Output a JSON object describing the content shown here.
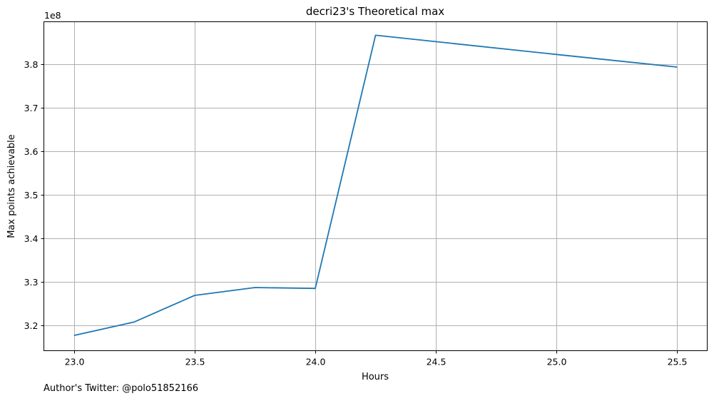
{
  "chart_data": {
    "type": "line",
    "title": "decri23's Theoretical max",
    "xlabel": "Hours",
    "ylabel": "Max points achievable",
    "y_scale_label": "1e8",
    "x": [
      23.0,
      23.25,
      23.5,
      23.75,
      24.0,
      24.25,
      25.0,
      25.5
    ],
    "series": [
      {
        "values": [
          3.177,
          3.208,
          3.269,
          3.287,
          3.285,
          3.866,
          3.822,
          3.793
        ],
        "color": "#1f77b4"
      }
    ],
    "xlim": [
      22.875,
      25.625
    ],
    "ylim": [
      3.142,
      3.897
    ],
    "xticks": [
      23.0,
      23.5,
      24.0,
      24.5,
      25.0,
      25.5
    ],
    "xtick_labels": [
      "23.0",
      "23.5",
      "24.0",
      "24.5",
      "25.0",
      "25.5"
    ],
    "yticks": [
      3.2,
      3.3,
      3.4,
      3.5,
      3.6,
      3.7,
      3.8
    ],
    "ytick_labels": [
      "3.2",
      "3.3",
      "3.4",
      "3.5",
      "3.6",
      "3.7",
      "3.8"
    ],
    "grid": true
  },
  "footnote": "Author's Twitter: @polo51852166"
}
